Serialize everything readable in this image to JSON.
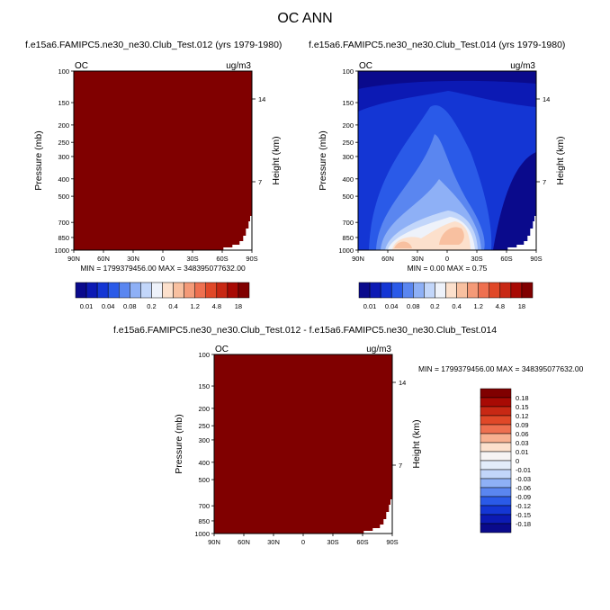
{
  "title": "OC ANN",
  "panels": [
    {
      "id": "p1",
      "subtitle": "f.e15a6.FAMIPC5.ne30_ne30.Club_Test.012 (yrs 1979-1980)",
      "variable": "OC",
      "units": "ug/m3",
      "ylabel": "Pressure (mb)",
      "y2label": "Height (km)",
      "stats": "MIN = 1799379456.00   MAX = 348395077632.00",
      "fill": "saturated"
    },
    {
      "id": "p2",
      "subtitle": "f.e15a6.FAMIPC5.ne30_ne30.Club_Test.014 (yrs 1979-1980)",
      "variable": "OC",
      "units": "ug/m3",
      "ylabel": "Pressure (mb)",
      "y2label": "Height (km)",
      "stats": "MIN =   0.00   MAX =   0.75",
      "fill": "contour"
    },
    {
      "id": "p3",
      "subtitle": "f.e15a6.FAMIPC5.ne30_ne30.Club_Test.012 - f.e15a6.FAMIPC5.ne30_ne30.Club_Test.014",
      "variable": "OC",
      "units": "ug/m3",
      "ylabel": "Pressure (mb)",
      "y2label": "Height (km)",
      "stats": "MIN = 1799379456.00   MAX = 348395077632.00",
      "fill": "saturated"
    }
  ],
  "chart_data": {
    "type": "heatmap",
    "x_ticks": [
      "90N",
      "60N",
      "30N",
      "0",
      "30S",
      "60S",
      "90S"
    ],
    "x_values": [
      90,
      60,
      30,
      0,
      -30,
      -60,
      -90
    ],
    "y_ticks": [
      "100",
      "150",
      "200",
      "250",
      "300",
      "400",
      "500",
      "700",
      "850",
      "1000"
    ],
    "y_values": [
      100,
      150,
      200,
      250,
      300,
      400,
      500,
      700,
      850,
      1000
    ],
    "y_scale": "log",
    "ylim": [
      1000,
      100
    ],
    "y2_ticks": [
      "14",
      "7"
    ],
    "y2_values": [
      14,
      7
    ],
    "levels_abs": [
      "0.01",
      "0.04",
      "0.08",
      "0.2",
      "0.4",
      "1.2",
      "4.8",
      "18"
    ],
    "levels_diff": [
      "0.18",
      "0.15",
      "0.12",
      "0.09",
      "0.06",
      "0.03",
      "0.01",
      "0",
      "-0.01",
      "-0.03",
      "-0.06",
      "-0.09",
      "-0.12",
      "-0.15",
      "-0.18"
    ],
    "colors_abs": [
      "#0a0a8c",
      "#0c1ab4",
      "#1436d4",
      "#2a5ae8",
      "#5a86f0",
      "#8eb0f6",
      "#c2d6fa",
      "#eef2fa",
      "#fce0cc",
      "#f8c0a0",
      "#f49a78",
      "#ee7050",
      "#e04828",
      "#c82814",
      "#a80a04",
      "#800000"
    ],
    "colors_diff": [
      "#800000",
      "#a80a04",
      "#c82814",
      "#e04828",
      "#ee7050",
      "#f8b090",
      "#fce0cc",
      "#f6f4f4",
      "#e2ecfa",
      "#c2d6fa",
      "#8eb0f6",
      "#5a86f0",
      "#2a5ae8",
      "#1436d4",
      "#0c1ab4",
      "#0a0a8c"
    ]
  }
}
